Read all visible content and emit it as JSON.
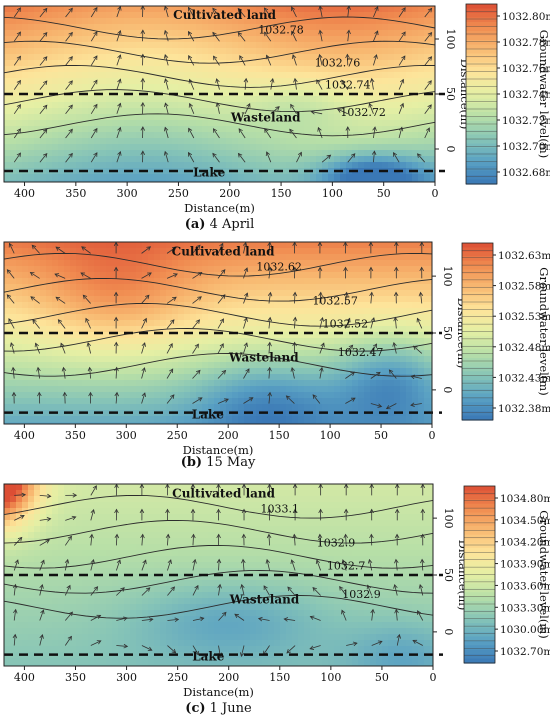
{
  "chart_data": [
    {
      "type": "heatmap",
      "panel_label": "(a)",
      "caption": "4 April",
      "xlabel": "Distance(m)",
      "ylabel": "Distance(m)",
      "colorbar_label": "Groundwater level(m)",
      "xlim": [
        420,
        0
      ],
      "ylim": [
        -30,
        130
      ],
      "x_ticks": [
        "400",
        "350",
        "300",
        "250",
        "200",
        "150",
        "100",
        "50",
        "0"
      ],
      "y_ticks": [
        "100",
        "50",
        "0"
      ],
      "colorbar_ticks": [
        "1032.80m",
        "1032.78m",
        "1032.76m",
        "1032.74m",
        "1032.72m",
        "1032.70m",
        "1032.68m"
      ],
      "colorbar_values": [
        1032.8,
        1032.78,
        1032.76,
        1032.74,
        1032.72,
        1032.7,
        1032.68
      ],
      "contour_labels": [
        "1032.78",
        "1032.76",
        "1032.74",
        "1032.72"
      ],
      "region_labels": [
        "Cultivated land",
        "Wasteland",
        "Lake"
      ],
      "boundary_y": [
        50,
        -20
      ]
    },
    {
      "type": "heatmap",
      "panel_label": "(b)",
      "caption": "15 May",
      "xlabel": "Distance(m)",
      "ylabel": "Distance(m)",
      "colorbar_label": "Groundwater level(m)",
      "xlim": [
        420,
        0
      ],
      "ylim": [
        -30,
        130
      ],
      "x_ticks": [
        "400",
        "350",
        "300",
        "250",
        "200",
        "150",
        "100",
        "50",
        "0"
      ],
      "y_ticks": [
        "100",
        "50",
        "0"
      ],
      "colorbar_ticks": [
        "1032.63m",
        "1032.58m",
        "1032.53m",
        "1032.48m",
        "1032.43m",
        "1032.38m"
      ],
      "colorbar_values": [
        1032.63,
        1032.58,
        1032.53,
        1032.48,
        1032.43,
        1032.38
      ],
      "contour_labels": [
        "1032.62",
        "1032.57",
        "1032.52",
        "1032.47"
      ],
      "region_labels": [
        "Cultivated land",
        "Wasteland",
        "Lake"
      ],
      "boundary_y": [
        50,
        -20
      ]
    },
    {
      "type": "heatmap",
      "panel_label": "(c)",
      "caption": "1 June",
      "xlabel": "Distance(m)",
      "ylabel": "Distance(m)",
      "colorbar_label": "Groundwater level(m)",
      "xlim": [
        420,
        0
      ],
      "ylim": [
        -30,
        130
      ],
      "x_ticks": [
        "400",
        "350",
        "300",
        "250",
        "200",
        "150",
        "100",
        "50",
        "0"
      ],
      "y_ticks": [
        "100",
        "50",
        "0"
      ],
      "colorbar_ticks": [
        "1034.80m",
        "1034.50m",
        "1034.20m",
        "1033.90m",
        "1033.60m",
        "1033.30m",
        "1030.00m",
        "1032.70m"
      ],
      "colorbar_values": [
        1034.8,
        1034.5,
        1034.2,
        1033.9,
        1033.6,
        1033.3,
        1030.0,
        1032.7
      ],
      "contour_labels": [
        "1033.1",
        "1032.9",
        "1032.7",
        "1032.9"
      ],
      "region_labels": [
        "Cultivated land",
        "Wasteland",
        "Lake"
      ],
      "boundary_y": [
        50,
        -20
      ]
    }
  ]
}
